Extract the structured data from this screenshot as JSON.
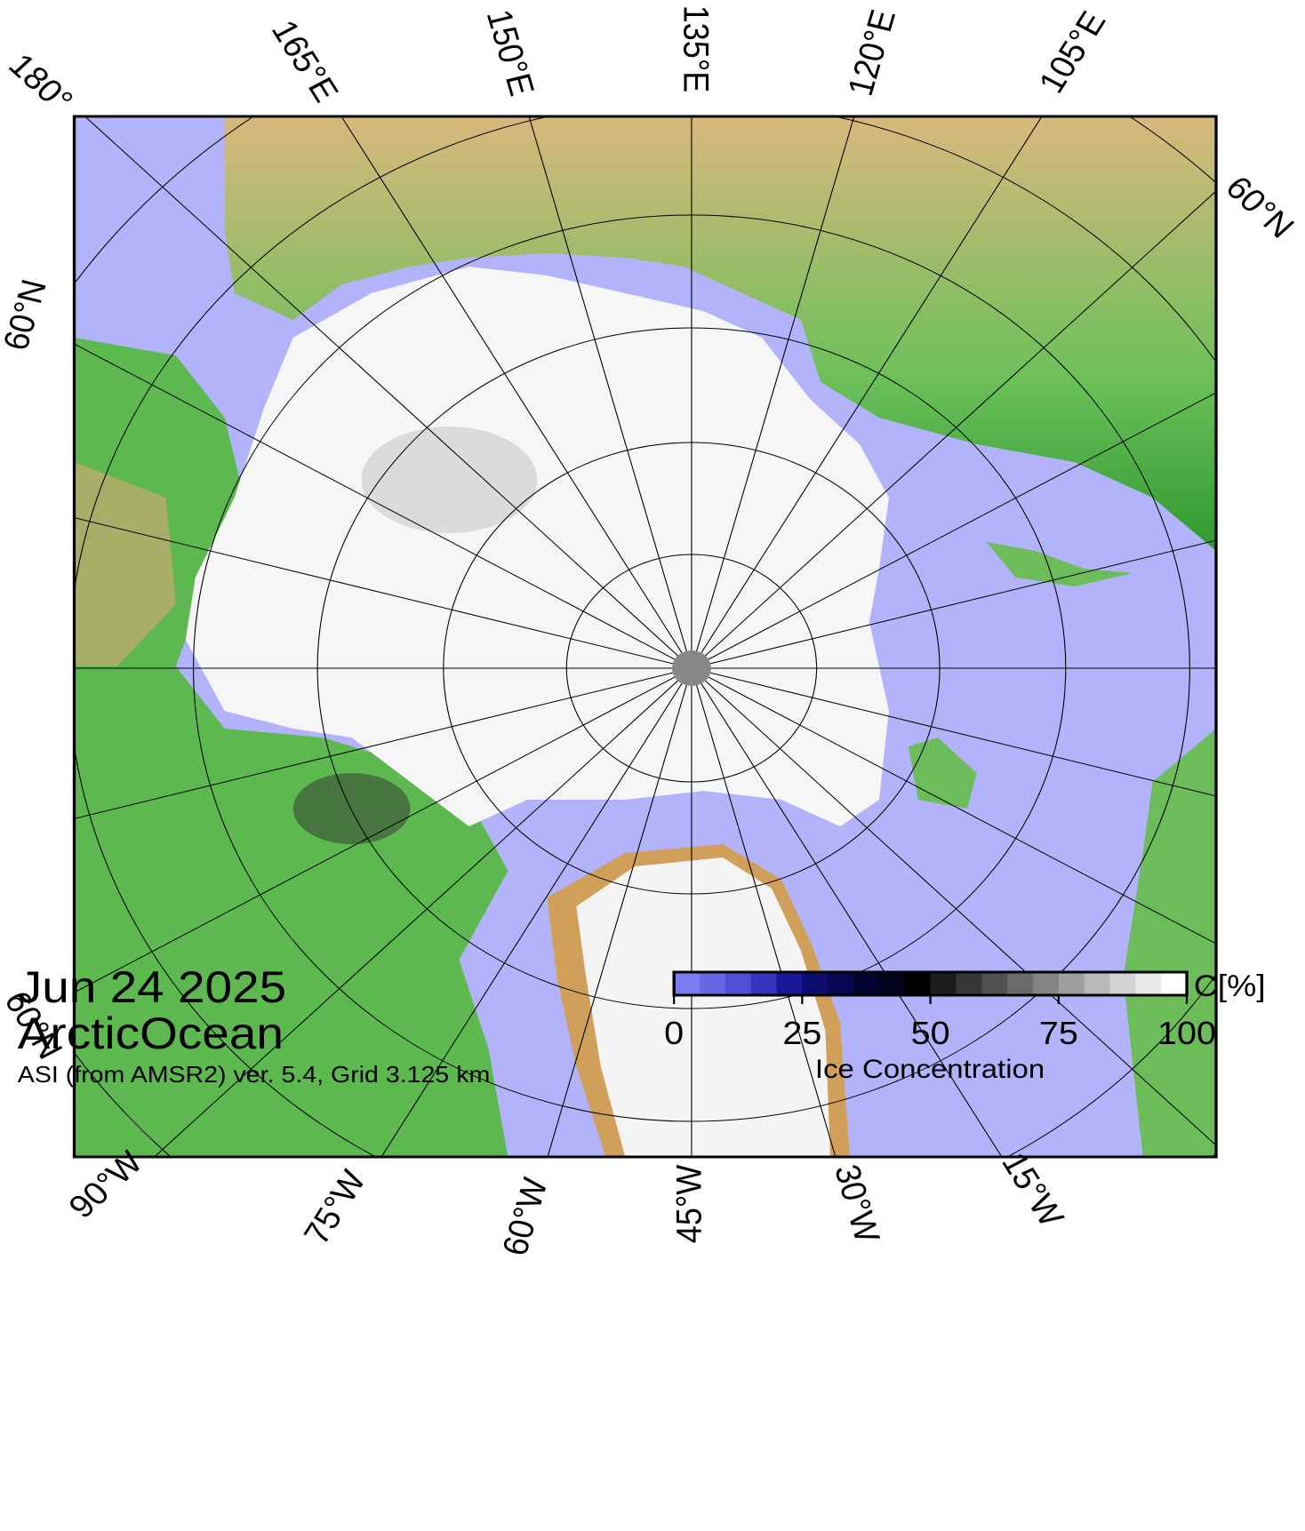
{
  "map": {
    "meridian_labels": [
      "180°",
      "165°E",
      "150°E",
      "135°E",
      "120°E",
      "105°E",
      "90°W",
      "75°W",
      "60°W",
      "45°W",
      "30°W",
      "15°W"
    ],
    "parallel_labels": [
      "60°N",
      "60°N",
      "60°N"
    ],
    "date": "Jun 24 2025",
    "region": "ArcticOcean",
    "source": "ASI (from AMSR2) ver. 5.4,  Grid 3.125 km",
    "colorbar": {
      "title": "Ice Concentration",
      "unit": "C[%]",
      "xlim": [
        0,
        100
      ],
      "xticks": [
        0,
        25,
        50,
        75,
        100
      ],
      "colors": [
        "#7b7bf2",
        "#6767e6",
        "#5050d6",
        "#3434bd",
        "#181898",
        "#0d0d70",
        "#080850",
        "#050532",
        "#02021a",
        "#000000",
        "#1c1c1c",
        "#363636",
        "#505050",
        "#6a6a6a",
        "#848484",
        "#9e9e9e",
        "#b8b8b8",
        "#d2d2d2",
        "#e8e8e8",
        "#ffffff"
      ]
    }
  }
}
